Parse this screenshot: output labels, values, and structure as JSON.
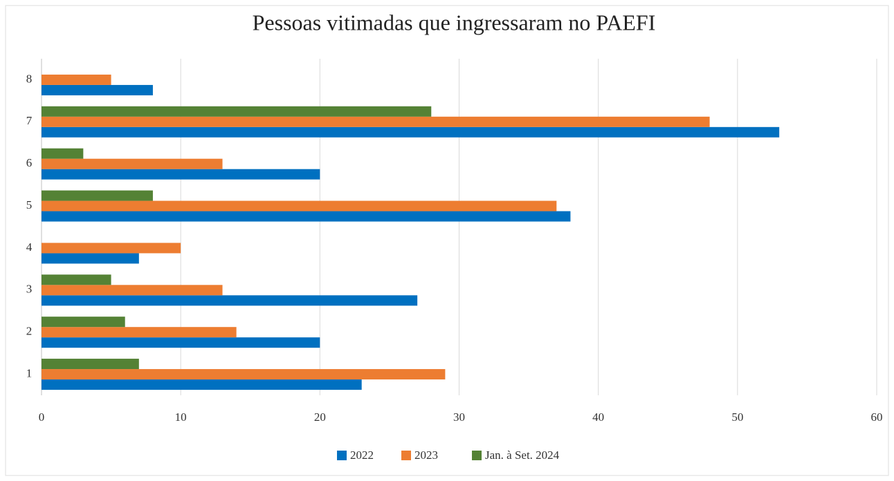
{
  "chart_data": {
    "type": "barh",
    "title": "Pessoas vitimadas que ingressaram no PAEFI",
    "categories": [
      "1",
      "2",
      "3",
      "4",
      "5",
      "6",
      "7",
      "8"
    ],
    "series": [
      {
        "name": "2022",
        "color": "#0070c0",
        "values": [
          23,
          20,
          27,
          7,
          38,
          20,
          53,
          8
        ]
      },
      {
        "name": "2023",
        "color": "#ed7d31",
        "values": [
          29,
          14,
          13,
          10,
          37,
          13,
          48,
          5
        ]
      },
      {
        "name": "Jan. à Set. 2024",
        "color": "#548235",
        "values": [
          7,
          6,
          5,
          null,
          8,
          3,
          28,
          null
        ]
      }
    ],
    "xlim": [
      0,
      60
    ],
    "xticks": [
      0,
      10,
      20,
      30,
      40,
      50,
      60
    ],
    "grid": true,
    "legend": "bottom"
  }
}
